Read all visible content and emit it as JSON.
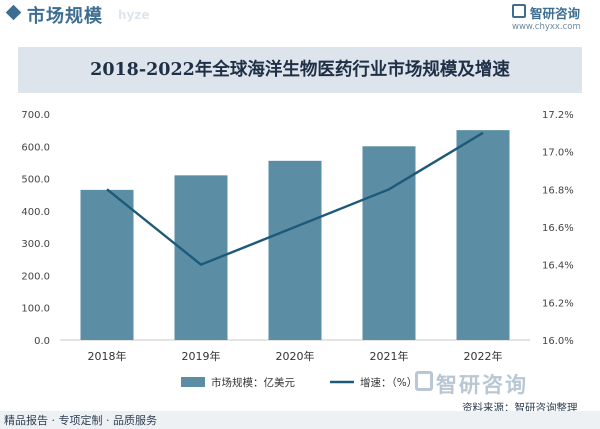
{
  "header": {
    "title": "市场规模",
    "watermark": "hyze"
  },
  "brand": {
    "name": "智研咨询",
    "url": "www.chyxx.com",
    "watermark_name": "智研咨询"
  },
  "colors": {
    "accent": "#3d6e91",
    "bar": "#5b8ea5",
    "line": "#1d5a7a",
    "title_band": "#dde4ec"
  },
  "chart_data": {
    "type": "bar",
    "title": "2018-2022年全球海洋生物医药行业市场规模及增速",
    "categories": [
      "2018年",
      "2019年",
      "2020年",
      "2021年",
      "2022年"
    ],
    "series": [
      {
        "name": "市场规模：亿美元",
        "type": "bar",
        "axis": "left",
        "values": [
          465,
          510,
          555,
          600,
          650
        ]
      },
      {
        "name": "增速：（%）",
        "type": "line",
        "axis": "right",
        "values": [
          16.8,
          16.4,
          16.6,
          16.8,
          17.1
        ]
      }
    ],
    "y_left": {
      "min": 0,
      "max": 700,
      "ticks": [
        "0.0",
        "100.0",
        "200.0",
        "300.0",
        "400.0",
        "500.0",
        "600.0",
        "700.0"
      ]
    },
    "y_right": {
      "min": 16.0,
      "max": 17.2,
      "ticks": [
        "16.0%",
        "16.2%",
        "16.4%",
        "16.6%",
        "16.8%",
        "17.0%",
        "17.2%"
      ]
    },
    "grid": false,
    "legend_position": "bottom"
  },
  "footer": {
    "left": "精品报告 · 专项定制 · 品质服务",
    "source": "资料来源：智研咨询整理"
  }
}
